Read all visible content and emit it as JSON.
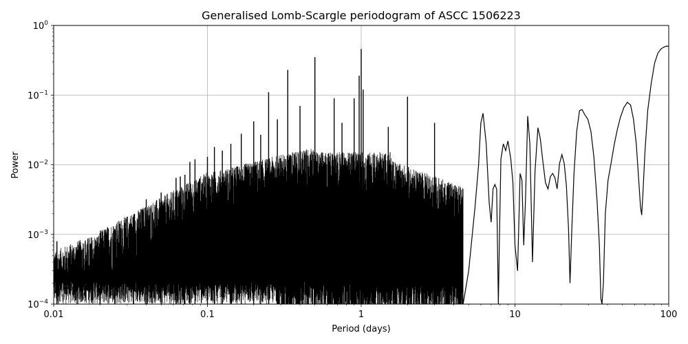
{
  "chart_data": {
    "type": "line",
    "title": "Generalised Lomb-Scargle periodogram of ASCC 1506223",
    "xlabel": "Period (days)",
    "ylabel": "Power",
    "xscale": "log",
    "yscale": "log",
    "xlim": [
      0.01,
      100
    ],
    "ylim": [
      0.0001,
      1
    ],
    "grid": true,
    "line_color": "#000000",
    "x_ticks": [
      {
        "value": 0.01,
        "label": "0.01"
      },
      {
        "value": 0.1,
        "label": "0.1"
      },
      {
        "value": 1,
        "label": "1"
      },
      {
        "value": 10,
        "label": "10"
      },
      {
        "value": 100,
        "label": "100"
      }
    ],
    "y_ticks": [
      {
        "value": 0.0001,
        "base": "10",
        "exp": "−4"
      },
      {
        "value": 0.001,
        "base": "10",
        "exp": "−3"
      },
      {
        "value": 0.01,
        "base": "10",
        "exp": "−2"
      },
      {
        "value": 0.1,
        "base": "10",
        "exp": "−1"
      },
      {
        "value": 1,
        "base": "10",
        "exp": "0"
      }
    ],
    "series": [
      {
        "x": [
          4.6,
          5.0,
          5.5,
          5.8,
          6.0,
          6.2,
          6.5,
          6.8,
          7.0,
          7.2,
          7.4,
          7.6,
          7.8,
          7.9,
          8.1,
          8.4,
          8.7,
          9.0,
          9.4,
          9.7,
          10.0,
          10.4,
          10.8,
          11.1,
          11.4,
          11.7,
          12.1,
          12.5,
          13.0,
          13.5,
          14.1,
          14.6,
          15.2,
          15.8,
          16.4,
          17.0,
          17.6,
          18.2,
          18.8,
          19.5,
          20.2,
          20.9,
          21.6,
          22.3,
          22.8,
          23.4,
          24.2,
          25.2,
          26.3,
          27.3,
          28.5,
          29.8,
          31.2,
          32.6,
          34.2,
          35.4,
          36.2,
          36.8,
          37.6,
          38.7,
          40.3,
          42.3,
          44.3,
          46.3,
          48.5,
          51.0,
          53.8,
          56.5,
          59.0,
          61.5,
          63.8,
          65.5,
          66.7,
          68.0,
          70.0,
          73.0,
          77.0,
          81.0,
          85.0,
          89.0,
          93.0,
          97.0,
          100.0
        ],
        "y": [
          0.0001,
          0.0003,
          0.0025,
          0.01,
          0.04,
          0.055,
          0.02,
          0.0028,
          0.0015,
          0.0045,
          0.0052,
          0.0045,
          0.0001,
          0.0006,
          0.012,
          0.02,
          0.016,
          0.022,
          0.012,
          0.0055,
          0.0007,
          0.0003,
          0.0075,
          0.006,
          0.0007,
          0.003,
          0.05,
          0.02,
          0.0004,
          0.008,
          0.034,
          0.024,
          0.011,
          0.0055,
          0.0045,
          0.0068,
          0.0075,
          0.0065,
          0.0045,
          0.0105,
          0.014,
          0.0105,
          0.005,
          0.0012,
          0.0002,
          0.0011,
          0.0075,
          0.03,
          0.06,
          0.062,
          0.052,
          0.045,
          0.03,
          0.013,
          0.003,
          0.0007,
          0.00012,
          0.0001,
          0.0002,
          0.002,
          0.006,
          0.011,
          0.02,
          0.032,
          0.048,
          0.066,
          0.079,
          0.072,
          0.045,
          0.02,
          0.006,
          0.0025,
          0.0019,
          0.004,
          0.015,
          0.06,
          0.15,
          0.29,
          0.4,
          0.46,
          0.49,
          0.505,
          0.5
        ]
      }
    ],
    "peaks": [
      {
        "x": 0.2,
        "y": 0.042
      },
      {
        "x": 0.222,
        "y": 0.027
      },
      {
        "x": 0.25,
        "y": 0.11
      },
      {
        "x": 0.285,
        "y": 0.045
      },
      {
        "x": 0.333,
        "y": 0.23
      },
      {
        "x": 0.4,
        "y": 0.07
      },
      {
        "x": 0.5,
        "y": 0.35
      },
      {
        "x": 0.667,
        "y": 0.09
      },
      {
        "x": 0.75,
        "y": 0.04
      },
      {
        "x": 0.9,
        "y": 0.09
      },
      {
        "x": 0.97,
        "y": 0.19
      },
      {
        "x": 1.0,
        "y": 0.46
      },
      {
        "x": 1.03,
        "y": 0.12
      },
      {
        "x": 1.5,
        "y": 0.035
      },
      {
        "x": 2.0,
        "y": 0.095
      },
      {
        "x": 3.0,
        "y": 0.04
      },
      {
        "x": 0.166,
        "y": 0.028
      },
      {
        "x": 0.142,
        "y": 0.02
      },
      {
        "x": 0.125,
        "y": 0.016
      },
      {
        "x": 0.111,
        "y": 0.018
      },
      {
        "x": 0.1,
        "y": 0.013
      },
      {
        "x": 0.083,
        "y": 0.012
      },
      {
        "x": 0.0769,
        "y": 0.011
      },
      {
        "x": 0.0714,
        "y": 0.0072
      },
      {
        "x": 0.0666,
        "y": 0.0068
      },
      {
        "x": 0.0625,
        "y": 0.0065
      },
      {
        "x": 0.05,
        "y": 0.004
      },
      {
        "x": 0.04,
        "y": 0.0032
      },
      {
        "x": 0.033,
        "y": 0.0018
      },
      {
        "x": 0.025,
        "y": 0.0012
      },
      {
        "x": 0.02,
        "y": 0.0009
      },
      {
        "x": 0.0142,
        "y": 0.0006
      },
      {
        "x": 0.0105,
        "y": 0.0008
      }
    ]
  }
}
